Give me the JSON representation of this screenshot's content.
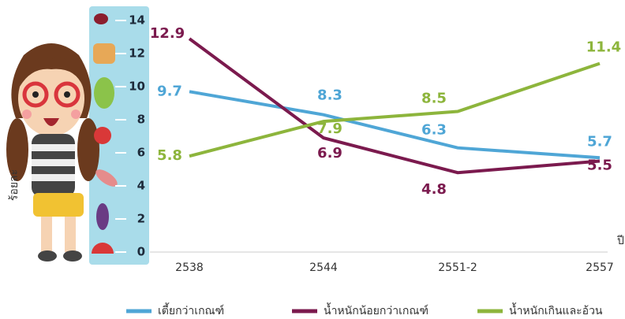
{
  "chart_data": {
    "type": "line",
    "y_label": "ร้อยละ",
    "x_label": "ปี",
    "categories": [
      "2538",
      "2544",
      "2551-2",
      "2557"
    ],
    "series": [
      {
        "name": "เตี้ยกว่าเกณฑ์",
        "color": "#4fa6d6",
        "values": [
          9.7,
          8.3,
          6.3,
          5.7
        ]
      },
      {
        "name": "น้ำหนักน้อยกว่าเกณฑ์",
        "color": "#7b1a4e",
        "values": [
          12.9,
          6.9,
          4.8,
          5.5
        ]
      },
      {
        "name": "น้ำหนักเกินและอ้วน",
        "color": "#8db53c",
        "values": [
          5.8,
          7.9,
          8.5,
          11.4
        ]
      }
    ],
    "ylim": [
      0,
      14
    ],
    "yticks": [
      0,
      2,
      4,
      6,
      8,
      10,
      12,
      14
    ]
  }
}
